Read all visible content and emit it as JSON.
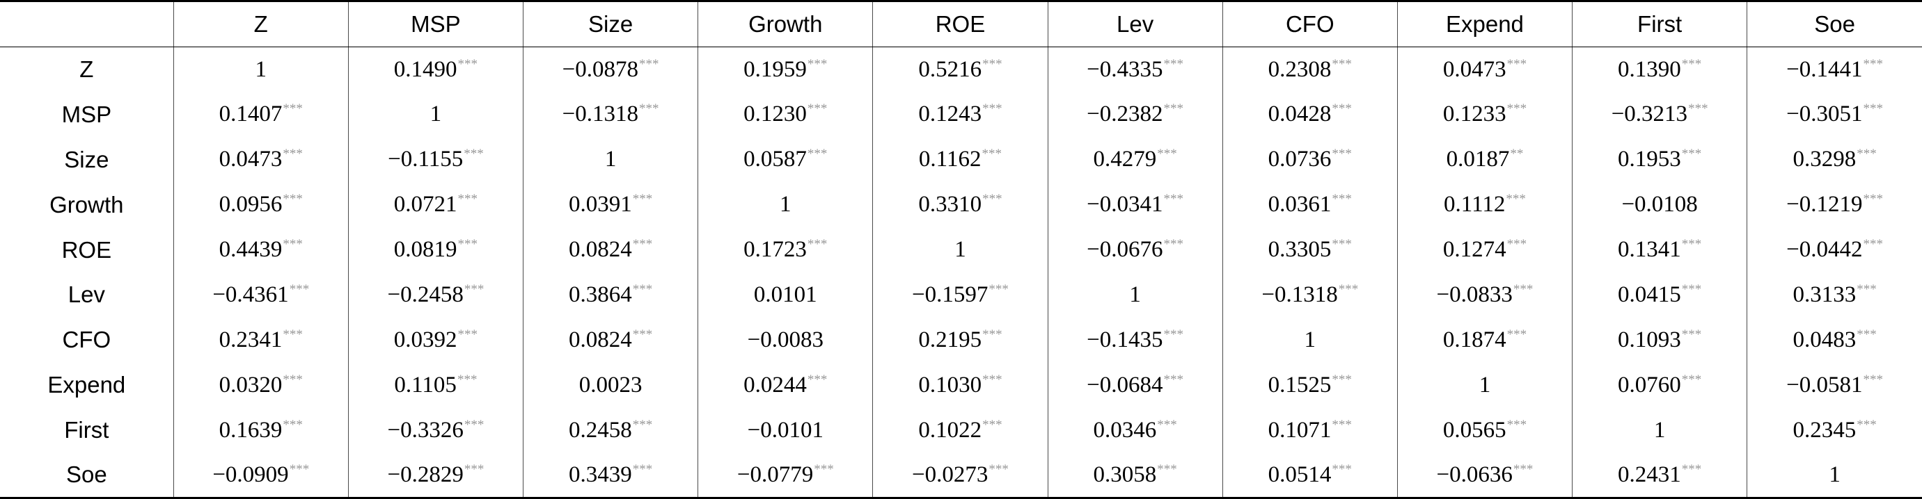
{
  "table": {
    "columns": [
      "Z",
      "MSP",
      "Size",
      "Growth",
      "ROE",
      "Lev",
      "CFO",
      "Expend",
      "First",
      "Soe"
    ],
    "rows": [
      {
        "label": "Z",
        "cells": [
          {
            "v": "1",
            "s": ""
          },
          {
            "v": "0.1490",
            "s": "***"
          },
          {
            "v": "−0.0878",
            "s": "***"
          },
          {
            "v": "0.1959",
            "s": "***"
          },
          {
            "v": "0.5216",
            "s": "***"
          },
          {
            "v": "−0.4335",
            "s": "***"
          },
          {
            "v": "0.2308",
            "s": "***"
          },
          {
            "v": "0.0473",
            "s": "***"
          },
          {
            "v": "0.1390",
            "s": "***"
          },
          {
            "v": "−0.1441",
            "s": "***"
          }
        ]
      },
      {
        "label": "MSP",
        "cells": [
          {
            "v": "0.1407",
            "s": "***"
          },
          {
            "v": "1",
            "s": ""
          },
          {
            "v": "−0.1318",
            "s": "***"
          },
          {
            "v": "0.1230",
            "s": "***"
          },
          {
            "v": "0.1243",
            "s": "***"
          },
          {
            "v": "−0.2382",
            "s": "***"
          },
          {
            "v": "0.0428",
            "s": "***"
          },
          {
            "v": "0.1233",
            "s": "***"
          },
          {
            "v": "−0.3213",
            "s": "***"
          },
          {
            "v": "−0.3051",
            "s": "***"
          }
        ]
      },
      {
        "label": "Size",
        "cells": [
          {
            "v": "0.0473",
            "s": "***"
          },
          {
            "v": "−0.1155",
            "s": "***"
          },
          {
            "v": "1",
            "s": ""
          },
          {
            "v": "0.0587",
            "s": "***"
          },
          {
            "v": "0.1162",
            "s": "***"
          },
          {
            "v": "0.4279",
            "s": "***"
          },
          {
            "v": "0.0736",
            "s": "***"
          },
          {
            "v": "0.0187",
            "s": "**"
          },
          {
            "v": "0.1953",
            "s": "***"
          },
          {
            "v": "0.3298",
            "s": "***"
          }
        ]
      },
      {
        "label": "Growth",
        "cells": [
          {
            "v": "0.0956",
            "s": "***"
          },
          {
            "v": "0.0721",
            "s": "***"
          },
          {
            "v": "0.0391",
            "s": "***"
          },
          {
            "v": "1",
            "s": ""
          },
          {
            "v": "0.3310",
            "s": "***"
          },
          {
            "v": "−0.0341",
            "s": "***"
          },
          {
            "v": "0.0361",
            "s": "***"
          },
          {
            "v": "0.1112",
            "s": "***"
          },
          {
            "v": "−0.0108",
            "s": ""
          },
          {
            "v": "−0.1219",
            "s": "***"
          }
        ]
      },
      {
        "label": "ROE",
        "cells": [
          {
            "v": "0.4439",
            "s": "***"
          },
          {
            "v": "0.0819",
            "s": "***"
          },
          {
            "v": "0.0824",
            "s": "***"
          },
          {
            "v": "0.1723",
            "s": "***"
          },
          {
            "v": "1",
            "s": ""
          },
          {
            "v": "−0.0676",
            "s": "***"
          },
          {
            "v": "0.3305",
            "s": "***"
          },
          {
            "v": "0.1274",
            "s": "***"
          },
          {
            "v": "0.1341",
            "s": "***"
          },
          {
            "v": "−0.0442",
            "s": "***"
          }
        ]
      },
      {
        "label": "Lev",
        "cells": [
          {
            "v": "−0.4361",
            "s": "***"
          },
          {
            "v": "−0.2458",
            "s": "***"
          },
          {
            "v": "0.3864",
            "s": "***"
          },
          {
            "v": "0.0101",
            "s": ""
          },
          {
            "v": "−0.1597",
            "s": "***"
          },
          {
            "v": "1",
            "s": ""
          },
          {
            "v": "−0.1318",
            "s": "***"
          },
          {
            "v": "−0.0833",
            "s": "***"
          },
          {
            "v": "0.0415",
            "s": "***"
          },
          {
            "v": "0.3133",
            "s": "***"
          }
        ]
      },
      {
        "label": "CFO",
        "cells": [
          {
            "v": "0.2341",
            "s": "***"
          },
          {
            "v": "0.0392",
            "s": "***"
          },
          {
            "v": "0.0824",
            "s": "***"
          },
          {
            "v": "−0.0083",
            "s": ""
          },
          {
            "v": "0.2195",
            "s": "***"
          },
          {
            "v": "−0.1435",
            "s": "***"
          },
          {
            "v": "1",
            "s": ""
          },
          {
            "v": "0.1874",
            "s": "***"
          },
          {
            "v": "0.1093",
            "s": "***"
          },
          {
            "v": "0.0483",
            "s": "***"
          }
        ]
      },
      {
        "label": "Expend",
        "cells": [
          {
            "v": "0.0320",
            "s": "***"
          },
          {
            "v": "0.1105",
            "s": "***"
          },
          {
            "v": "0.0023",
            "s": ""
          },
          {
            "v": "0.0244",
            "s": "***"
          },
          {
            "v": "0.1030",
            "s": "***"
          },
          {
            "v": "−0.0684",
            "s": "***"
          },
          {
            "v": "0.1525",
            "s": "***"
          },
          {
            "v": "1",
            "s": ""
          },
          {
            "v": "0.0760",
            "s": "***"
          },
          {
            "v": "−0.0581",
            "s": "***"
          }
        ]
      },
      {
        "label": "First",
        "cells": [
          {
            "v": "0.1639",
            "s": "***"
          },
          {
            "v": "−0.3326",
            "s": "***"
          },
          {
            "v": "0.2458",
            "s": "***"
          },
          {
            "v": "−0.0101",
            "s": ""
          },
          {
            "v": "0.1022",
            "s": "***"
          },
          {
            "v": "0.0346",
            "s": "***"
          },
          {
            "v": "0.1071",
            "s": "***"
          },
          {
            "v": "0.0565",
            "s": "***"
          },
          {
            "v": "1",
            "s": ""
          },
          {
            "v": "0.2345",
            "s": "***"
          }
        ]
      },
      {
        "label": "Soe",
        "cells": [
          {
            "v": "−0.0909",
            "s": "***"
          },
          {
            "v": "−0.2829",
            "s": "***"
          },
          {
            "v": "0.3439",
            "s": "***"
          },
          {
            "v": "−0.0779",
            "s": "***"
          },
          {
            "v": "−0.0273",
            "s": "***"
          },
          {
            "v": "0.3058",
            "s": "***"
          },
          {
            "v": "0.0514",
            "s": "***"
          },
          {
            "v": "−0.0636",
            "s": "***"
          },
          {
            "v": "0.2431",
            "s": "***"
          },
          {
            "v": "1",
            "s": ""
          }
        ]
      }
    ]
  },
  "colors": {
    "text": "#000000",
    "significance_stars": "#9a9a9a",
    "rules": "#000000",
    "column_dividers": "#4a4a4a",
    "background": "#ffffff"
  }
}
